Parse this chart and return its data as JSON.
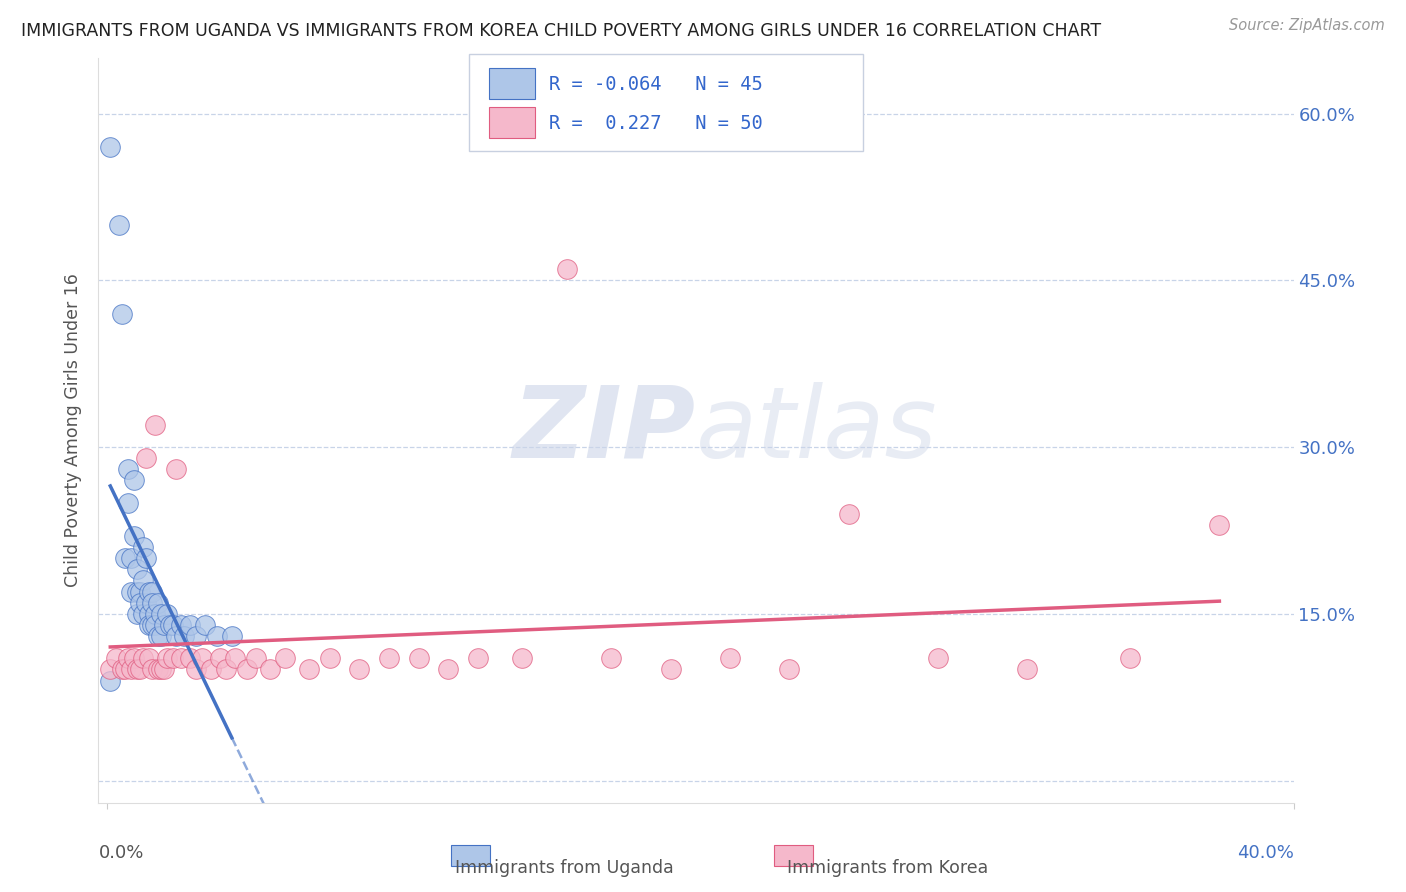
{
  "title": "IMMIGRANTS FROM UGANDA VS IMMIGRANTS FROM KOREA CHILD POVERTY AMONG GIRLS UNDER 16 CORRELATION CHART",
  "source": "Source: ZipAtlas.com",
  "ylabel": "Child Poverty Among Girls Under 16",
  "R_uganda": -0.064,
  "N_uganda": 45,
  "R_korea": 0.227,
  "N_korea": 50,
  "color_uganda": "#aec6e8",
  "color_korea": "#f5b8cb",
  "line_color_uganda": "#4472c4",
  "line_color_korea": "#e05c80",
  "watermark_color": "#ccd5e8",
  "x_lim": [
    -0.003,
    0.4
  ],
  "y_lim": [
    -0.02,
    0.65
  ],
  "y_ticks": [
    0.0,
    0.15,
    0.3,
    0.45,
    0.6
  ],
  "y_tick_labels": [
    "",
    "15.0%",
    "30.0%",
    "45.0%",
    "60.0%"
  ],
  "background_color": "#ffffff",
  "uganda_x": [
    0.001,
    0.004,
    0.005,
    0.006,
    0.007,
    0.007,
    0.008,
    0.008,
    0.009,
    0.009,
    0.01,
    0.01,
    0.01,
    0.011,
    0.011,
    0.012,
    0.012,
    0.012,
    0.013,
    0.013,
    0.014,
    0.014,
    0.014,
    0.015,
    0.015,
    0.015,
    0.016,
    0.016,
    0.017,
    0.017,
    0.018,
    0.018,
    0.019,
    0.02,
    0.021,
    0.022,
    0.023,
    0.025,
    0.026,
    0.028,
    0.03,
    0.033,
    0.037,
    0.042,
    0.001
  ],
  "uganda_y": [
    0.57,
    0.5,
    0.42,
    0.2,
    0.28,
    0.25,
    0.2,
    0.17,
    0.27,
    0.22,
    0.19,
    0.17,
    0.15,
    0.17,
    0.16,
    0.21,
    0.18,
    0.15,
    0.2,
    0.16,
    0.17,
    0.15,
    0.14,
    0.17,
    0.16,
    0.14,
    0.15,
    0.14,
    0.16,
    0.13,
    0.15,
    0.13,
    0.14,
    0.15,
    0.14,
    0.14,
    0.13,
    0.14,
    0.13,
    0.14,
    0.13,
    0.14,
    0.13,
    0.13,
    0.09
  ],
  "korea_x": [
    0.001,
    0.003,
    0.005,
    0.006,
    0.007,
    0.008,
    0.009,
    0.01,
    0.011,
    0.012,
    0.013,
    0.014,
    0.015,
    0.016,
    0.017,
    0.018,
    0.019,
    0.02,
    0.022,
    0.023,
    0.025,
    0.028,
    0.03,
    0.032,
    0.035,
    0.038,
    0.04,
    0.043,
    0.047,
    0.05,
    0.055,
    0.06,
    0.068,
    0.075,
    0.085,
    0.095,
    0.105,
    0.115,
    0.125,
    0.14,
    0.155,
    0.17,
    0.19,
    0.21,
    0.23,
    0.25,
    0.28,
    0.31,
    0.345,
    0.375
  ],
  "korea_y": [
    0.1,
    0.11,
    0.1,
    0.1,
    0.11,
    0.1,
    0.11,
    0.1,
    0.1,
    0.11,
    0.29,
    0.11,
    0.1,
    0.32,
    0.1,
    0.1,
    0.1,
    0.11,
    0.11,
    0.28,
    0.11,
    0.11,
    0.1,
    0.11,
    0.1,
    0.11,
    0.1,
    0.11,
    0.1,
    0.11,
    0.1,
    0.11,
    0.1,
    0.11,
    0.1,
    0.11,
    0.11,
    0.1,
    0.11,
    0.11,
    0.46,
    0.11,
    0.1,
    0.11,
    0.1,
    0.24,
    0.11,
    0.1,
    0.11,
    0.23
  ]
}
